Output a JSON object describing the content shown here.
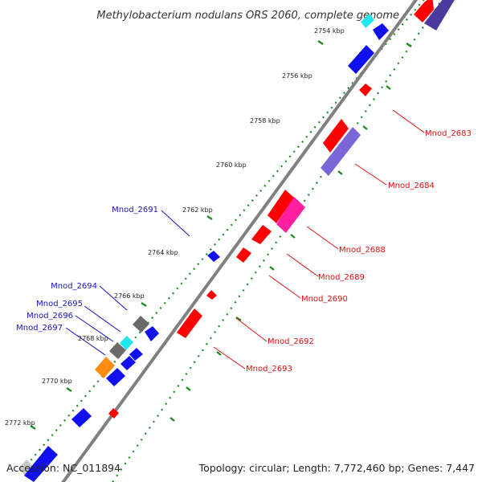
{
  "title": "Methylobacterium nodulans ORS 2060, complete genome",
  "footer": {
    "accession": "Accession: NC_011894",
    "summary": "Topology: circular; Length: 7,772,460 bp; Genes: 7,447"
  },
  "colors": {
    "backbone": "#808080",
    "tick": "#1f8a1f",
    "forward_label": "#1515c0",
    "reverse_label": "#e01010",
    "gene_red": "#ff0000",
    "gene_blue": "#1010ee",
    "gene_purple": "#7a66d6",
    "gene_magenta": "#ff1fa0",
    "gene_cyan": "#22e6ee",
    "gene_gray": "#6a6a6a",
    "gene_orange": "#ff8c10",
    "gene_light": "#c8c8c8"
  },
  "scale_labels": [
    "2754 kbp",
    "2756 kbp",
    "2758 kbp",
    "2760 kbp",
    "2762 kbp",
    "2764 kbp",
    "2766 kbp",
    "2768 kbp",
    "2770 kbp",
    "2772 kbp"
  ],
  "gene_labels": {
    "forward": [
      "Mnod_2691",
      "Mnod_2694",
      "Mnod_2695",
      "Mnod_2696",
      "Mnod_2697"
    ],
    "reverse": [
      "Mnod_2683",
      "Mnod_2684",
      "Mnod_2688",
      "Mnod_2689",
      "Mnod_2690",
      "Mnod_2692",
      "Mnod_2693"
    ]
  }
}
